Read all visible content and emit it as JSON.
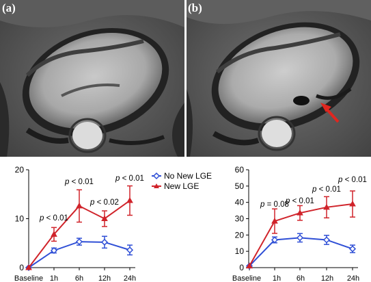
{
  "panels": {
    "a": {
      "letter": "(a)"
    },
    "b": {
      "letter": "(b)"
    }
  },
  "colors": {
    "no_new_lge": "#2f4fd6",
    "new_lge": "#d0232a",
    "axis": "#000000"
  },
  "chart_data": [
    {
      "type": "line",
      "categories": [
        "Baseline",
        "1h",
        "6h",
        "12h",
        "24h"
      ],
      "ylim": [
        0,
        20
      ],
      "yticks": [
        0,
        10,
        20
      ],
      "legend": "top-right",
      "grid": false,
      "series": [
        {
          "name": "No New LGE",
          "color": "#2f4fd6",
          "marker": "diamond",
          "values": [
            0,
            3.5,
            5.3,
            5.2,
            3.6
          ],
          "errors": [
            0,
            0.5,
            0.7,
            1.2,
            1.0
          ]
        },
        {
          "name": "New LGE",
          "color": "#d0232a",
          "marker": "triangle",
          "values": [
            0,
            6.8,
            12.6,
            10.0,
            13.7
          ],
          "errors": [
            0,
            1.4,
            3.3,
            1.6,
            3.0
          ]
        }
      ],
      "annotations": [
        {
          "x": "1h",
          "text": "p < 0.01"
        },
        {
          "x": "6h",
          "text": "p < 0.01"
        },
        {
          "x": "12h",
          "text": "p < 0.02"
        },
        {
          "x": "24h",
          "text": "p < 0.01"
        }
      ]
    },
    {
      "type": "line",
      "categories": [
        "Baseline",
        "1h",
        "6h",
        "12h",
        "24h"
      ],
      "ylim": [
        0,
        60
      ],
      "yticks": [
        0,
        10,
        20,
        30,
        40,
        50,
        60
      ],
      "grid": false,
      "series": [
        {
          "name": "No New LGE",
          "color": "#2f4fd6",
          "marker": "diamond",
          "values": [
            1,
            17,
            18.3,
            17,
            11.5
          ],
          "errors": [
            0,
            1.8,
            2.6,
            2.8,
            2.3
          ]
        },
        {
          "name": "New LGE",
          "color": "#d0232a",
          "marker": "triangle",
          "values": [
            1,
            28.5,
            33.5,
            37,
            39
          ],
          "errors": [
            0,
            7.5,
            4.5,
            6.5,
            8
          ]
        }
      ],
      "annotations": [
        {
          "x": "1h",
          "text": "p = 0.08"
        },
        {
          "x": "6h",
          "text": "p < 0.01"
        },
        {
          "x": "12h",
          "text": "p < 0.01"
        },
        {
          "x": "24h",
          "text": "p < 0.01"
        }
      ]
    }
  ]
}
